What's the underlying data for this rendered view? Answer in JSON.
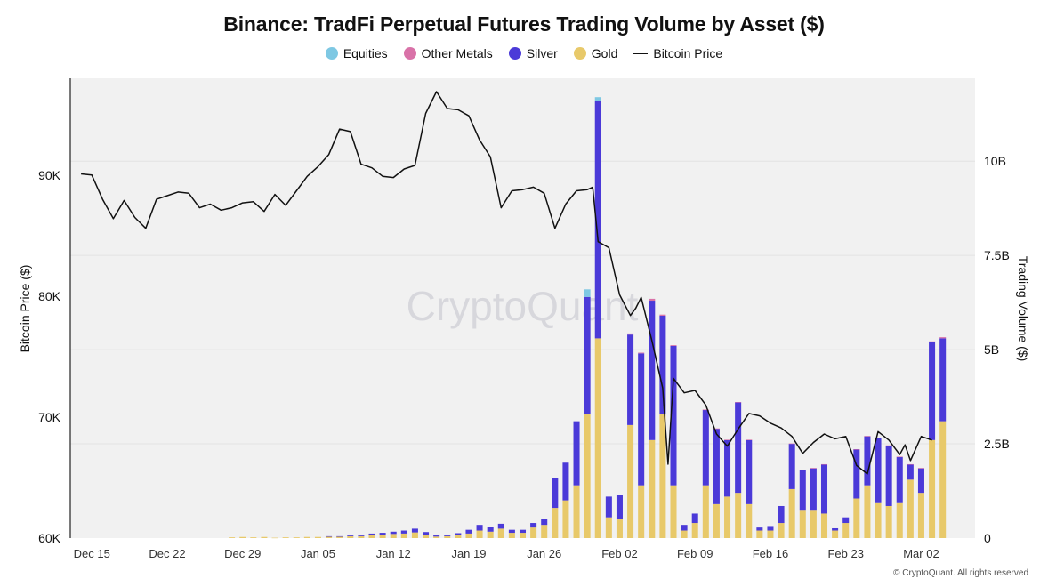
{
  "chart_data": {
    "type": "bar",
    "title": "Binance: TradFi Perpetual Futures Trading Volume by Asset ($)",
    "watermark": "CryptoQuant",
    "credit": "© CryptoQuant. All rights reserved",
    "legend": [
      {
        "name": "Equities",
        "color": "#7ec8e3",
        "kind": "dot"
      },
      {
        "name": "Other Metals",
        "color": "#d972a8",
        "kind": "dot"
      },
      {
        "name": "Silver",
        "color": "#4b3ad8",
        "kind": "dot"
      },
      {
        "name": "Gold",
        "color": "#e8c96a",
        "kind": "dot"
      },
      {
        "name": "Bitcoin Price",
        "color": "#111111",
        "kind": "line"
      }
    ],
    "ylabel_left": "Bitcoin Price ($)",
    "ylabel_right": "Trading Volume ($)",
    "y_left": {
      "min": 60000,
      "max": 98000,
      "ticks": [
        60000,
        70000,
        80000,
        90000
      ],
      "tick_labels": [
        "60K",
        "70K",
        "80K",
        "90K"
      ]
    },
    "y_right": {
      "min": 0,
      "max": 12.2,
      "ticks": [
        0,
        2.5,
        5,
        7.5,
        10
      ],
      "tick_labels": [
        "0",
        "2.5B",
        "5B",
        "7.5B",
        "10B"
      ]
    },
    "x": {
      "start_day": -2,
      "end_day": 82,
      "ticks": [
        {
          "day": 0,
          "label": "Dec 15"
        },
        {
          "day": 7,
          "label": "Dec 22"
        },
        {
          "day": 14,
          "label": "Dec 29"
        },
        {
          "day": 21,
          "label": "Jan 05"
        },
        {
          "day": 28,
          "label": "Jan 12"
        },
        {
          "day": 35,
          "label": "Jan 19"
        },
        {
          "day": 42,
          "label": "Jan 26"
        },
        {
          "day": 49,
          "label": "Feb 02"
        },
        {
          "day": 56,
          "label": "Feb 09"
        },
        {
          "day": 63,
          "label": "Feb 16"
        },
        {
          "day": 70,
          "label": "Feb 23"
        },
        {
          "day": 77,
          "label": "Mar 02"
        }
      ]
    },
    "bars_start_day": 13,
    "volume_series": [
      {
        "name": "Gold",
        "color": "#e8c96a",
        "values": [
          0.02,
          0.03,
          0.02,
          0.03,
          0.01,
          0.02,
          0.02,
          0.03,
          0.03,
          0.04,
          0.04,
          0.05,
          0.05,
          0.08,
          0.09,
          0.11,
          0.12,
          0.15,
          0.09,
          0.04,
          0.05,
          0.08,
          0.12,
          0.2,
          0.17,
          0.25,
          0.14,
          0.14,
          0.28,
          0.35,
          0.8,
          1.0,
          1.4,
          3.3,
          5.3,
          0.55,
          0.5,
          3.0,
          1.4,
          2.6,
          3.3,
          1.4,
          0.2,
          0.4,
          1.4,
          0.9,
          1.1,
          1.2,
          0.9,
          0.2,
          0.2,
          0.4,
          1.3,
          0.75,
          0.75,
          0.65,
          0.2,
          0.4,
          1.05,
          1.4,
          0.95,
          0.85,
          0.95,
          1.55,
          1.2,
          2.6,
          3.1
        ]
      },
      {
        "name": "Silver",
        "color": "#4b3ad8",
        "values": [
          0,
          0,
          0,
          0,
          0,
          0,
          0,
          0,
          0,
          0.01,
          0.01,
          0.02,
          0.02,
          0.04,
          0.05,
          0.06,
          0.08,
          0.1,
          0.07,
          0.03,
          0.03,
          0.05,
          0.1,
          0.15,
          0.13,
          0.13,
          0.08,
          0.08,
          0.12,
          0.15,
          0.8,
          1.0,
          1.7,
          3.1,
          6.3,
          0.55,
          0.65,
          2.4,
          3.5,
          3.7,
          2.6,
          3.7,
          0.15,
          0.25,
          2.0,
          2.0,
          1.5,
          2.4,
          1.7,
          0.08,
          0.12,
          0.45,
          1.2,
          1.05,
          1.1,
          1.3,
          0.06,
          0.15,
          1.3,
          1.3,
          1.7,
          1.6,
          1.2,
          0.4,
          0.65,
          2.6,
          2.2
        ]
      },
      {
        "name": "Other Metals",
        "color": "#d972a8",
        "values": [
          0,
          0,
          0,
          0,
          0,
          0,
          0,
          0,
          0,
          0,
          0,
          0,
          0,
          0,
          0,
          0,
          0,
          0,
          0,
          0,
          0,
          0,
          0,
          0,
          0,
          0,
          0,
          0,
          0,
          0,
          0,
          0,
          0,
          0,
          0,
          0,
          0,
          0.03,
          0.02,
          0.05,
          0.03,
          0.02,
          0,
          0,
          0.01,
          0.01,
          0.01,
          0.01,
          0.01,
          0,
          0,
          0,
          0.01,
          0.01,
          0.01,
          0.01,
          0,
          0,
          0.01,
          0.01,
          0.01,
          0.01,
          0.01,
          0.01,
          0.01,
          0.02,
          0.03
        ]
      },
      {
        "name": "Equities",
        "color": "#7ec8e3",
        "values": [
          0,
          0,
          0,
          0,
          0,
          0,
          0,
          0,
          0,
          0,
          0,
          0,
          0,
          0,
          0,
          0,
          0,
          0,
          0,
          0,
          0,
          0,
          0,
          0,
          0,
          0,
          0,
          0,
          0,
          0,
          0,
          0,
          0,
          0.2,
          0.1,
          0,
          0,
          0,
          0,
          0,
          0,
          0,
          0,
          0,
          0,
          0,
          0,
          0,
          0,
          0,
          0,
          0,
          0,
          0,
          0,
          0,
          0,
          0,
          0,
          0,
          0,
          0,
          0,
          0,
          0,
          0,
          0
        ]
      }
    ],
    "bitcoin_price": {
      "x": [
        -1,
        0,
        1,
        2,
        3,
        4,
        5,
        6,
        7,
        8,
        9,
        10,
        11,
        12,
        13,
        14,
        15,
        16,
        17,
        18,
        19,
        20,
        21,
        22,
        23,
        24,
        25,
        26,
        27,
        28,
        29,
        30,
        31,
        32,
        33,
        34,
        35,
        36,
        37,
        38,
        39,
        40,
        41,
        42,
        43,
        44,
        45,
        46,
        46.5,
        47,
        48,
        49,
        50,
        50.5,
        51,
        52,
        53,
        53.5,
        54,
        55,
        56,
        57,
        58,
        59,
        60,
        61,
        62,
        63,
        64,
        65,
        66,
        67,
        68,
        69,
        70,
        71,
        72,
        73,
        74,
        75,
        75.5,
        76,
        77,
        78
      ],
      "y": [
        90100,
        90000,
        88000,
        86400,
        87900,
        86500,
        85600,
        88000,
        88300,
        88600,
        88500,
        87300,
        87600,
        87100,
        87300,
        87700,
        87800,
        87000,
        88400,
        87500,
        88700,
        89900,
        90700,
        91700,
        93800,
        93600,
        90900,
        90600,
        89900,
        89800,
        90500,
        90800,
        95100,
        96900,
        95500,
        95400,
        94900,
        92900,
        91500,
        87300,
        88700,
        88800,
        89000,
        88500,
        85600,
        87600,
        88700,
        88800,
        89000,
        84500,
        84000,
        80100,
        78400,
        79000,
        79900,
        76300,
        72400,
        66100,
        73200,
        72000,
        72200,
        71000,
        68600,
        67600,
        69000,
        70300,
        70100,
        69500,
        69100,
        68400,
        67000,
        67900,
        68600,
        68200,
        68400,
        66000,
        65300,
        68800,
        68100,
        66900,
        67700,
        66400,
        68400,
        68100
      ]
    }
  }
}
